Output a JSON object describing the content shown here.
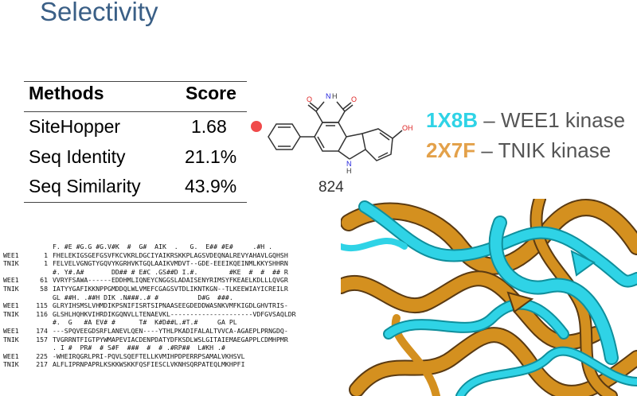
{
  "slide": {
    "title": "Selectivity"
  },
  "table": {
    "headers": [
      "Methods",
      "Score"
    ],
    "rows": [
      {
        "method": "SiteHopper",
        "score": "1.68"
      },
      {
        "method": "Seq Identity",
        "score": "21.1%"
      },
      {
        "method": "Seq Similarity",
        "score": "43.9%"
      }
    ]
  },
  "molecule": {
    "label": "824",
    "atoms": {
      "o1": "O",
      "nh": "N",
      "h": "H",
      "o2": "O",
      "oh": "OH",
      "n2": "N",
      "h2": "H"
    }
  },
  "legend": [
    {
      "code": "1X8B",
      "text": "– WEE1 kinase",
      "color": "#2fd3e6"
    },
    {
      "code": "2X7F",
      "text": "– TNIK kinase",
      "color": "#e3a14a"
    }
  ],
  "alignment": {
    "blocks": [
      {
        "cons": "F. #E #G.G #G.V#K  #  G#  AIK  .   G.  E## #E#     .#H .",
        "rows": [
          {
            "name": "WEE1",
            "num": "1",
            "seq": "FHELEKIGSGEFGSVFKCVKRLDGCIYAIKRSKKPLAGSVDEQNALREVYAHAVLGQHSH"
          },
          {
            "name": "TNIK",
            "num": "1",
            "seq": "FELVELVGNGTYGQVYKGRHVKTGQLAAIKVMDVT--GDE-EEEIKQEINMLKKYSHHRN"
          }
        ]
      },
      {
        "cons": "#. Y#.A#       DD## # E#C .GS##D I.#.        #KE  #  #  ## R",
        "rows": [
          {
            "name": "WEE1",
            "num": "61",
            "seq": "VVRYFSAWA------EDDHMLIQNEYCNGGSLADAISENYRIMSYFKEAELKDLLLQVGR"
          },
          {
            "name": "TNIK",
            "num": "58",
            "seq": "IATYYGAFIKKNPPGMDDQLWLVMEFCGAGSVTDLIKNTKGN--TLKEEWIAYICREILR"
          }
        ]
      },
      {
        "cons": "GL ##H. .##H DIK .N###..# #          D#G  ###.",
        "rows": [
          {
            "name": "WEE1",
            "num": "115",
            "seq": "GLRYIHSMSLVHMDIKPSNIFISRTSIPNAASEEGDEDDWASNKVMFKIGDLGHVTRIS-"
          },
          {
            "name": "TNIK",
            "num": "116",
            "seq": "GLSHLHQHKVIHRDIKGQNVLLTENAEVKL---------------------VDFGVSAQLDR"
          }
        ]
      },
      {
        "cons": "#.  G   #A EV# #      T#  K#D##L.#T.#     GA PL",
        "rows": [
          {
            "name": "WEE1",
            "num": "174",
            "seq": "---SPQVEEGDSRFLANEVLQEN----YTHLPKADIFALALTVVCA-AGAEPLPRNGDQ-"
          },
          {
            "name": "TNIK",
            "num": "157",
            "seq": "TVGRRNTFIGTPYWMAPEVIACDENPDATYDFKSDLWSLGITAIEMAEGAPPLCDMHPMR"
          }
        ]
      },
      {
        "cons": ". I #  PR#  # S#F  ###  #  # .#RP##  L#KH .#",
        "rows": [
          {
            "name": "WEE1",
            "num": "225",
            "seq": "-WHEIRQGRLPRI-PQVLSQEFTELLKVMIHPDPERRPSAMALVKHSVL"
          },
          {
            "name": "TNIK",
            "num": "217",
            "seq": "ALFLIPRNPAPRLKSKKWSKKFQSFIESCLVKNHSQRPATEQLMKHPFI"
          }
        ]
      }
    ]
  },
  "structure": {
    "colors": {
      "cyan": "#2fd3e6",
      "gold": "#d4901f",
      "dark": "#5a3a12"
    }
  }
}
